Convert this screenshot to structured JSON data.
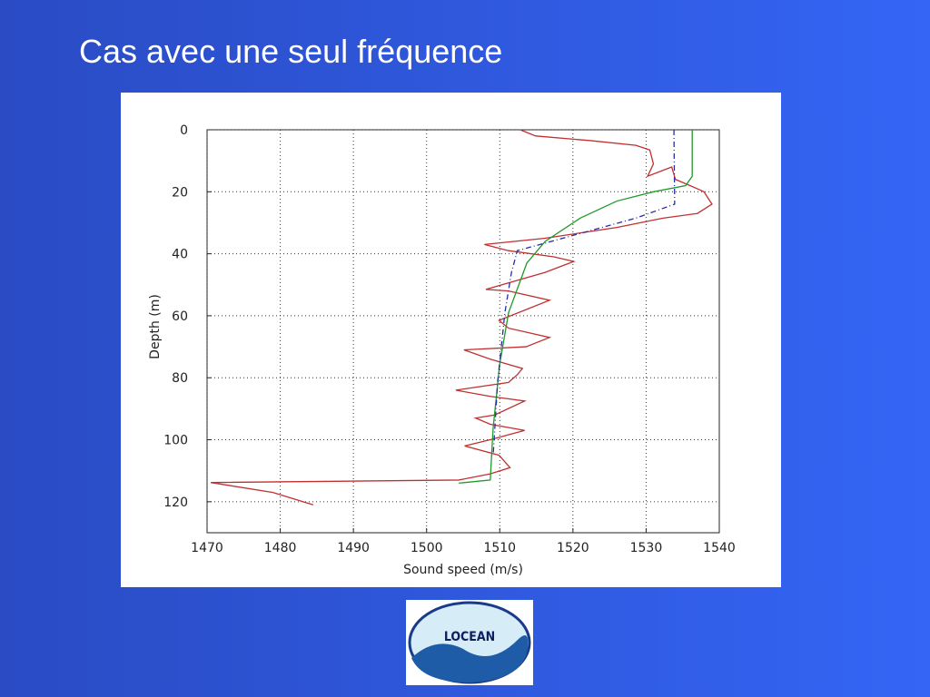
{
  "slide_title": "Cas avec une seul fréquence",
  "logo": "LOCEAN",
  "chart_data": {
    "type": "line",
    "x_label": "Sound speed (m/s)",
    "y_label": "Depth (m)",
    "xlim": [
      1470,
      1540
    ],
    "xticks": [
      1470,
      1480,
      1490,
      1500,
      1510,
      1520,
      1530,
      1540
    ],
    "ylim": [
      0,
      130
    ],
    "yticks": [
      0,
      20,
      40,
      60,
      80,
      100,
      120
    ],
    "y_inverted": true,
    "grid": true,
    "series": [
      {
        "color": "#c03030",
        "style": "solid",
        "x": [
          1512.8,
          1514.9,
          1522.4,
          1528.6,
          1530.5,
          1531,
          1530.2,
          1533.5,
          1534,
          1536,
          1537.9,
          1539,
          1537,
          1532.3,
          1526,
          1516.2,
          1507.9,
          1511.2,
          1517.4,
          1520.1,
          1516.2,
          1508.1,
          1511.2,
          1516.8,
          1513.6,
          1509.9,
          1511.2,
          1516.8,
          1513.6,
          1505.1,
          1508.7,
          1513.1,
          1512.4,
          1511.2,
          1504,
          1508.7,
          1513.4,
          1509.3,
          1506.7,
          1508.7,
          1513.4,
          1508.7,
          1505.2,
          1509.9,
          1511.4,
          1508.7,
          1504.4,
          1470.5,
          1479,
          1484.5
        ],
        "values": [
          0,
          2,
          3.5,
          5,
          6.5,
          11,
          15,
          12,
          16,
          18,
          20,
          24,
          27,
          28.5,
          31.5,
          35,
          37,
          39,
          41,
          42.5,
          46,
          51.5,
          52,
          55,
          58,
          61.5,
          64,
          67,
          70,
          71,
          74,
          77,
          79,
          81.5,
          84,
          86,
          87.5,
          92,
          93,
          95,
          97,
          100,
          102,
          105,
          109,
          111,
          113,
          113.8,
          117,
          121
        ]
      },
      {
        "color": "#1f9a2a",
        "style": "solid",
        "x": [
          1536.3,
          1536.3,
          1535.4,
          1531,
          1526,
          1521,
          1516.2,
          1513.7,
          1511.2,
          1510,
          1509.1,
          1508.7,
          1504.4
        ],
        "values": [
          0,
          15,
          18,
          20,
          23,
          28.5,
          36,
          43,
          59,
          75.5,
          96,
          113,
          114
        ]
      },
      {
        "color": "#2a2aa8",
        "style": "dashdot",
        "x": [
          1533.8,
          1533.9,
          1528.6,
          1518.6,
          1512.4,
          1511.6,
          1510.7,
          1509.7,
          1509.1
        ],
        "values": [
          0,
          24,
          28.5,
          35,
          39,
          46,
          59,
          81.5,
          105
        ]
      }
    ]
  }
}
